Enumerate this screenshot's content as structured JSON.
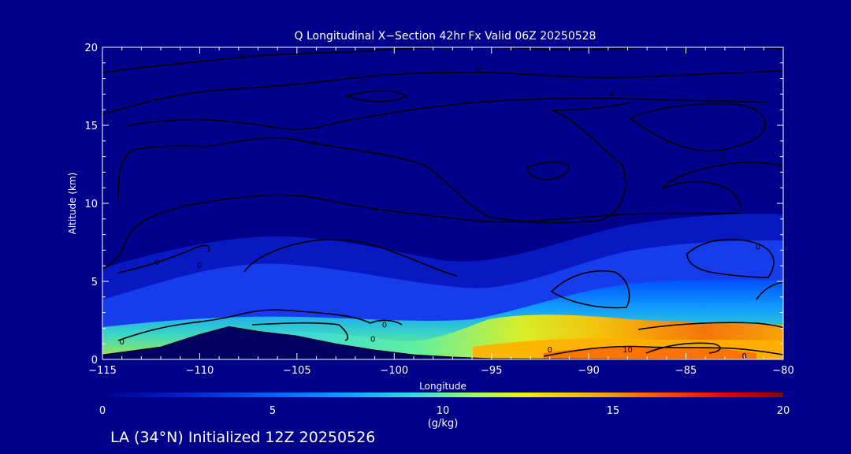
{
  "chart_data": {
    "type": "heatmap",
    "title": "Q Longitudinal X−Section 42hr  Fx Valid 06Z 20250528",
    "xlabel": "Longitude",
    "ylabel": "Altitude (km)",
    "xlim": [
      -115,
      -80
    ],
    "ylim": [
      0,
      20
    ],
    "x_ticks": [
      -115,
      -110,
      -105,
      -100,
      -95,
      -90,
      -85,
      -80
    ],
    "x_tick_labels": [
      "−115",
      "−110",
      "−105",
      "−100",
      "−95",
      "−90",
      "−85",
      "−80"
    ],
    "y_ticks": [
      0,
      5,
      10,
      15,
      20
    ],
    "y_tick_labels": [
      "0",
      "5",
      "10",
      "15",
      "20"
    ],
    "colorbar": {
      "min": 0,
      "max": 20,
      "ticks": [
        0,
        5,
        10,
        15,
        20
      ],
      "tick_labels": [
        "0",
        "5",
        "10",
        "15",
        "20"
      ],
      "label": "(g/kg)"
    },
    "contour_labels": [
      "0",
      "0",
      "0",
      "0",
      "0",
      "0",
      "0",
      "0",
      "0",
      "0",
      "0",
      "0",
      "0",
      "10",
      "0"
    ],
    "terrain": [
      {
        "x": -115,
        "y": 0.3
      },
      {
        "x": -112,
        "y": 0.8
      },
      {
        "x": -110,
        "y": 1.6
      },
      {
        "x": -108.5,
        "y": 2.1
      },
      {
        "x": -107,
        "y": 1.8
      },
      {
        "x": -105,
        "y": 1.5
      },
      {
        "x": -103,
        "y": 1.0
      },
      {
        "x": -101,
        "y": 0.6
      },
      {
        "x": -99,
        "y": 0.3
      },
      {
        "x": -97,
        "y": 0.15
      },
      {
        "x": -95,
        "y": 0.05
      },
      {
        "x": -80,
        "y": 0.0
      }
    ]
  },
  "footer": {
    "init_label": "LA (34°N) Initialized 12Z 20250526"
  }
}
